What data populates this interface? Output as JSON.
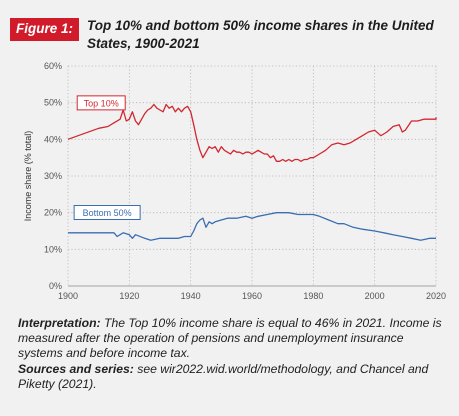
{
  "figure": {
    "badge": "Figure 1:",
    "title": "Top 10% and bottom 50% income shares in the United States, 1900-2021"
  },
  "chart_data": {
    "type": "line",
    "ylabel": "Income share (% total)",
    "xlim": [
      1900,
      2020
    ],
    "ylim": [
      0,
      60
    ],
    "xticks": [
      "1900",
      "1920",
      "1940",
      "1960",
      "1980",
      "2000",
      "2020"
    ],
    "yticks": [
      "0%",
      "10%",
      "20%",
      "30%",
      "40%",
      "50%",
      "60%"
    ],
    "grid": "dotted",
    "legend": "inline labels",
    "series": [
      {
        "name": "Top 10%",
        "color": "#d22730",
        "points": [
          [
            1900,
            40
          ],
          [
            1905,
            41.5
          ],
          [
            1910,
            43
          ],
          [
            1913,
            43.5
          ],
          [
            1915,
            44.5
          ],
          [
            1917,
            45.5
          ],
          [
            1918,
            48
          ],
          [
            1919,
            45
          ],
          [
            1920,
            45.5
          ],
          [
            1921,
            47.5
          ],
          [
            1922,
            45
          ],
          [
            1923,
            44
          ],
          [
            1924,
            45.5
          ],
          [
            1925,
            47
          ],
          [
            1926,
            48
          ],
          [
            1927,
            48.5
          ],
          [
            1928,
            49.5
          ],
          [
            1929,
            48.5
          ],
          [
            1930,
            48
          ],
          [
            1931,
            47.5
          ],
          [
            1932,
            49.5
          ],
          [
            1933,
            48.5
          ],
          [
            1934,
            49
          ],
          [
            1935,
            47.5
          ],
          [
            1936,
            48.5
          ],
          [
            1937,
            47.5
          ],
          [
            1938,
            48.5
          ],
          [
            1939,
            49
          ],
          [
            1940,
            47.5
          ],
          [
            1941,
            44
          ],
          [
            1942,
            40
          ],
          [
            1943,
            37
          ],
          [
            1944,
            35
          ],
          [
            1945,
            36.5
          ],
          [
            1946,
            38
          ],
          [
            1947,
            37.5
          ],
          [
            1948,
            38
          ],
          [
            1949,
            36.5
          ],
          [
            1950,
            38
          ],
          [
            1951,
            37
          ],
          [
            1952,
            36.5
          ],
          [
            1953,
            36
          ],
          [
            1954,
            37
          ],
          [
            1955,
            36.5
          ],
          [
            1956,
            36.5
          ],
          [
            1957,
            36
          ],
          [
            1958,
            36.5
          ],
          [
            1959,
            36.5
          ],
          [
            1960,
            36
          ],
          [
            1961,
            36.5
          ],
          [
            1962,
            37
          ],
          [
            1963,
            36.5
          ],
          [
            1964,
            36
          ],
          [
            1965,
            36
          ],
          [
            1966,
            35
          ],
          [
            1967,
            35.5
          ],
          [
            1968,
            34
          ],
          [
            1969,
            34
          ],
          [
            1970,
            34.5
          ],
          [
            1971,
            34
          ],
          [
            1972,
            34.5
          ],
          [
            1973,
            34
          ],
          [
            1974,
            34.5
          ],
          [
            1975,
            34.5
          ],
          [
            1976,
            34
          ],
          [
            1977,
            34.5
          ],
          [
            1978,
            34.5
          ],
          [
            1979,
            35
          ],
          [
            1980,
            35
          ],
          [
            1982,
            36
          ],
          [
            1984,
            37
          ],
          [
            1986,
            38.5
          ],
          [
            1988,
            39
          ],
          [
            1990,
            38.5
          ],
          [
            1992,
            39
          ],
          [
            1994,
            40
          ],
          [
            1996,
            41
          ],
          [
            1998,
            42
          ],
          [
            2000,
            42.5
          ],
          [
            2002,
            41
          ],
          [
            2004,
            42
          ],
          [
            2006,
            43.5
          ],
          [
            2008,
            44
          ],
          [
            2009,
            42
          ],
          [
            2010,
            42.5
          ],
          [
            2012,
            45
          ],
          [
            2014,
            45
          ],
          [
            2016,
            45.5
          ],
          [
            2018,
            45.5
          ],
          [
            2020,
            45.5
          ],
          [
            2021,
            46
          ]
        ]
      },
      {
        "name": "Bottom 50%",
        "color": "#3a6db3",
        "points": [
          [
            1900,
            14.5
          ],
          [
            1905,
            14.5
          ],
          [
            1910,
            14.5
          ],
          [
            1915,
            14.5
          ],
          [
            1916,
            13.5
          ],
          [
            1918,
            14.5
          ],
          [
            1920,
            14
          ],
          [
            1921,
            13
          ],
          [
            1922,
            14
          ],
          [
            1925,
            13
          ],
          [
            1927,
            12.5
          ],
          [
            1930,
            13
          ],
          [
            1933,
            13
          ],
          [
            1936,
            13
          ],
          [
            1938,
            13.5
          ],
          [
            1940,
            13.5
          ],
          [
            1941,
            15
          ],
          [
            1942,
            17
          ],
          [
            1943,
            18
          ],
          [
            1944,
            18.5
          ],
          [
            1945,
            16
          ],
          [
            1946,
            17.5
          ],
          [
            1947,
            17
          ],
          [
            1948,
            17.5
          ],
          [
            1950,
            18
          ],
          [
            1952,
            18.5
          ],
          [
            1955,
            18.5
          ],
          [
            1958,
            19
          ],
          [
            1960,
            18.5
          ],
          [
            1962,
            19
          ],
          [
            1965,
            19.5
          ],
          [
            1968,
            20
          ],
          [
            1970,
            20
          ],
          [
            1972,
            20
          ],
          [
            1975,
            19.5
          ],
          [
            1978,
            19.5
          ],
          [
            1980,
            19.5
          ],
          [
            1982,
            19
          ],
          [
            1985,
            18
          ],
          [
            1988,
            17
          ],
          [
            1990,
            17
          ],
          [
            1993,
            16
          ],
          [
            1996,
            15.5
          ],
          [
            2000,
            15
          ],
          [
            2003,
            14.5
          ],
          [
            2006,
            14
          ],
          [
            2009,
            13.5
          ],
          [
            2012,
            13
          ],
          [
            2015,
            12.5
          ],
          [
            2018,
            13
          ],
          [
            2020,
            13
          ],
          [
            2021,
            13
          ]
        ]
      }
    ]
  },
  "caption": {
    "interp_label": "Interpretation:",
    "interp_text": " The Top 10% income share is equal to 46% in 2021. Income is measured after the operation of pensions and unemployment insurance systems and before income tax.",
    "sources_label": "Sources and series:",
    "sources_text": " see wir2022.wid.world/methodology, and Chancel and Piketty (2021)."
  }
}
